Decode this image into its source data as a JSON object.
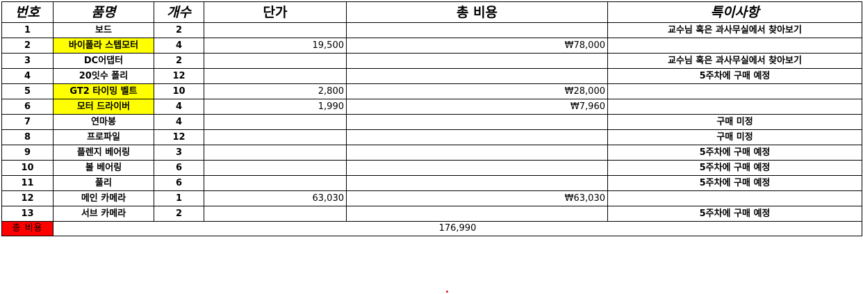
{
  "header": {
    "no": "번호",
    "item": "품명",
    "qty": "개수",
    "unit_price": "단가",
    "total_cost": "총 비용",
    "notes": "특이사항"
  },
  "rows": [
    {
      "no": "1",
      "item": "보드",
      "qty": "2",
      "unit_price": "",
      "total_cost": "",
      "notes": "교수님 혹은 과사무실에서 찾아보기",
      "highlight": false
    },
    {
      "no": "2",
      "item": "바이폴라 스텝모터",
      "qty": "4",
      "unit_price": "19,500",
      "total_cost": "₩78,000",
      "notes": "",
      "highlight": true
    },
    {
      "no": "3",
      "item": "DC어댑터",
      "qty": "2",
      "unit_price": "",
      "total_cost": "",
      "notes": "교수님 혹은 과사무실에서 찾아보기",
      "highlight": false
    },
    {
      "no": "4",
      "item": "20잇수 폴리",
      "qty": "12",
      "unit_price": "",
      "total_cost": "",
      "notes": "5주차에 구매 예정",
      "highlight": false
    },
    {
      "no": "5",
      "item": "GT2 타이밍 벨트",
      "qty": "10",
      "unit_price": "2,800",
      "total_cost": "₩28,000",
      "notes": "",
      "highlight": true
    },
    {
      "no": "6",
      "item": "모터 드라이버",
      "qty": "4",
      "unit_price": "1,990",
      "total_cost": "₩7,960",
      "notes": "",
      "highlight": true
    },
    {
      "no": "7",
      "item": "연마봉",
      "qty": "4",
      "unit_price": "",
      "total_cost": "",
      "notes": "구매 미정",
      "highlight": false
    },
    {
      "no": "8",
      "item": "프로파일",
      "qty": "12",
      "unit_price": "",
      "total_cost": "",
      "notes": "구매 미정",
      "highlight": false
    },
    {
      "no": "9",
      "item": "플렌지 베어링",
      "qty": "3",
      "unit_price": "",
      "total_cost": "",
      "notes": "5주차에 구매 예정",
      "highlight": false
    },
    {
      "no": "10",
      "item": "볼 베어링",
      "qty": "6",
      "unit_price": "",
      "total_cost": "",
      "notes": "5주차에 구매 예정",
      "highlight": false
    },
    {
      "no": "11",
      "item": "풀리",
      "qty": "6",
      "unit_price": "",
      "total_cost": "",
      "notes": "5주차에 구매 예정",
      "highlight": false
    },
    {
      "no": "12",
      "item": "메인 카메라",
      "qty": "1",
      "unit_price": "63,030",
      "total_cost": "₩63,030",
      "notes": "",
      "highlight": false
    },
    {
      "no": "13",
      "item": "서브 카메라",
      "qty": "2",
      "unit_price": "",
      "total_cost": "",
      "notes": "5주차에 구매 예정",
      "highlight": false
    }
  ],
  "total": {
    "label": "총 비용",
    "value": "176,990"
  },
  "colors": {
    "highlight": "#ffff00",
    "total_label_bg": "#ff0000",
    "stray_dot": "#e0182a"
  }
}
